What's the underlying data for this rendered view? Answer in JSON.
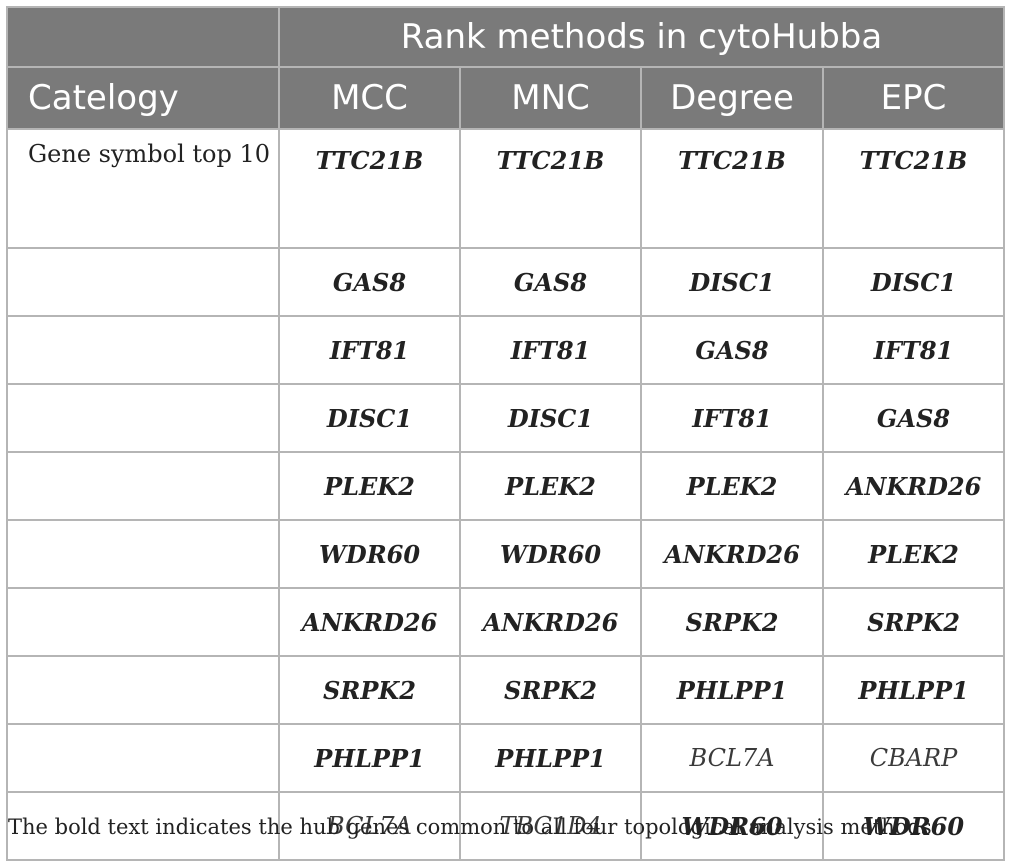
{
  "header": {
    "group_label": "Rank methods in cytoHubba",
    "category_label": "Catelogy",
    "methods": [
      "MCC",
      "MNC",
      "Degree",
      "EPC"
    ]
  },
  "category_text": "Gene symbol top 10",
  "rows": [
    [
      {
        "t": "TTC21B",
        "b": true
      },
      {
        "t": "TTC21B",
        "b": true
      },
      {
        "t": "TTC21B",
        "b": true
      },
      {
        "t": "TTC21B",
        "b": true
      }
    ],
    [
      {
        "t": "GAS8",
        "b": true
      },
      {
        "t": "GAS8",
        "b": true
      },
      {
        "t": "DISC1",
        "b": true
      },
      {
        "t": "DISC1",
        "b": true
      }
    ],
    [
      {
        "t": "IFT81",
        "b": true
      },
      {
        "t": "IFT81",
        "b": true
      },
      {
        "t": "GAS8",
        "b": true
      },
      {
        "t": "IFT81",
        "b": true
      }
    ],
    [
      {
        "t": "DISC1",
        "b": true
      },
      {
        "t": "DISC1",
        "b": true
      },
      {
        "t": "IFT81",
        "b": true
      },
      {
        "t": "GAS8",
        "b": true
      }
    ],
    [
      {
        "t": "PLEK2",
        "b": true
      },
      {
        "t": "PLEK2",
        "b": true
      },
      {
        "t": "PLEK2",
        "b": true
      },
      {
        "t": "ANKRD26",
        "b": true
      }
    ],
    [
      {
        "t": "WDR60",
        "b": true
      },
      {
        "t": "WDR60",
        "b": true
      },
      {
        "t": "ANKRD26",
        "b": true
      },
      {
        "t": "PLEK2",
        "b": true
      }
    ],
    [
      {
        "t": "ANKRD26",
        "b": true
      },
      {
        "t": "ANKRD26",
        "b": true
      },
      {
        "t": "SRPK2",
        "b": true
      },
      {
        "t": "SRPK2",
        "b": true
      }
    ],
    [
      {
        "t": "SRPK2",
        "b": true
      },
      {
        "t": "SRPK2",
        "b": true
      },
      {
        "t": "PHLPP1",
        "b": true
      },
      {
        "t": "PHLPP1",
        "b": true
      }
    ],
    [
      {
        "t": "PHLPP1",
        "b": true
      },
      {
        "t": "PHLPP1",
        "b": true
      },
      {
        "t": "BCL7A",
        "b": false
      },
      {
        "t": "CBARP",
        "b": false
      }
    ],
    [
      {
        "t": "BCL7A",
        "b": false
      },
      {
        "t": "TBC1D4",
        "b": false
      },
      {
        "t": "WDR60",
        "b": true
      },
      {
        "t": "WDR60",
        "b": true
      }
    ]
  ],
  "footnote": "The bold text indicates the hub genes common to all four topological analysis methods."
}
